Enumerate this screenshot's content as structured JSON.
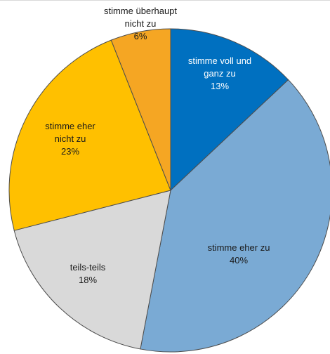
{
  "chart_data": {
    "type": "pie",
    "title": "",
    "slices": [
      {
        "label": [
          "stimme voll und",
          "ganz zu"
        ],
        "value": 13,
        "value_label": "13%",
        "color": "#0070c0",
        "text_color": "#ffffff"
      },
      {
        "label": [
          "stimme eher zu"
        ],
        "value": 40,
        "value_label": "40%",
        "color": "#7aaad4",
        "text_color": "#1a1a1a"
      },
      {
        "label": [
          "teils-teils"
        ],
        "value": 18,
        "value_label": "18%",
        "color": "#d9d9d9",
        "text_color": "#1a1a1a"
      },
      {
        "label": [
          "stimme eher",
          "nicht zu"
        ],
        "value": 23,
        "value_label": "23%",
        "color": "#ffc000",
        "text_color": "#1a1a1a"
      },
      {
        "label": [
          "stimme überhaupt",
          "nicht zu"
        ],
        "value": 6,
        "value_label": "6%",
        "color": "#f5a623",
        "text_color": "#1a1a1a"
      }
    ],
    "start_angle_deg": 0,
    "direction": "clockwise",
    "legend": "none"
  }
}
